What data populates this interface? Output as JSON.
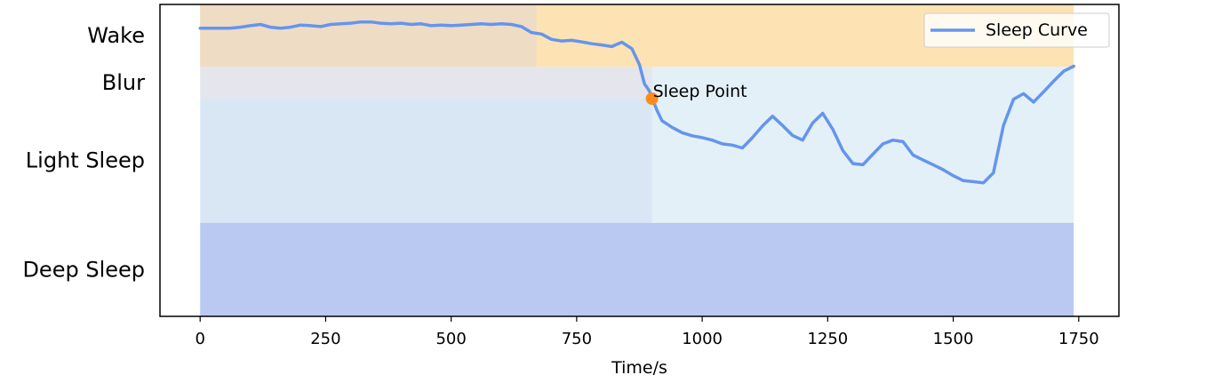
{
  "chart_data": {
    "type": "line",
    "title": "",
    "xlabel": "Time/s",
    "ylabel": "",
    "xlim": [
      -80,
      1830
    ],
    "ylim": [
      0,
      100
    ],
    "x_ticks": [
      0,
      250,
      500,
      750,
      1000,
      1250,
      1500,
      1750
    ],
    "bands": [
      {
        "name": "Wake",
        "from": 80,
        "to": 100,
        "color": "#fde3b4"
      },
      {
        "name": "Blur",
        "from": 70,
        "to": 80,
        "color": "#e5e5ec"
      },
      {
        "name": "Light Sleep",
        "from": 30,
        "to": 70,
        "color": "#d9e7f4"
      },
      {
        "name": "Deep Sleep",
        "from": 0,
        "to": 30,
        "color": "#bac9f2"
      }
    ],
    "band_overlays": [
      {
        "x_from": 0,
        "x_to": 670,
        "y_from": 80,
        "y_to": 100,
        "color": "#efdcc4"
      },
      {
        "x_from": 900,
        "x_to": 1740,
        "y_from": 30,
        "y_to": 80,
        "color": "#e4f0f8"
      }
    ],
    "series": [
      {
        "name": "Sleep Curve",
        "color": "#6495ed",
        "x": [
          0,
          30,
          60,
          80,
          100,
          120,
          140,
          160,
          180,
          200,
          220,
          240,
          260,
          280,
          300,
          320,
          340,
          360,
          380,
          400,
          420,
          440,
          460,
          480,
          500,
          520,
          540,
          560,
          580,
          600,
          620,
          640,
          660,
          680,
          700,
          720,
          740,
          760,
          780,
          800,
          820,
          840,
          860,
          875,
          885,
          895,
          900,
          910,
          920,
          940,
          960,
          980,
          1000,
          1020,
          1040,
          1060,
          1080,
          1100,
          1120,
          1140,
          1160,
          1180,
          1200,
          1220,
          1240,
          1260,
          1280,
          1300,
          1320,
          1340,
          1360,
          1380,
          1400,
          1420,
          1440,
          1460,
          1480,
          1500,
          1520,
          1540,
          1560,
          1580,
          1600,
          1620,
          1640,
          1660,
          1680,
          1700,
          1720,
          1740
        ],
        "y": [
          92.4,
          92.4,
          92.4,
          92.7,
          93.2,
          93.6,
          92.7,
          92.4,
          92.7,
          93.4,
          93.2,
          92.9,
          93.6,
          93.8,
          94.0,
          94.4,
          94.4,
          94.0,
          93.8,
          94.0,
          93.6,
          93.8,
          93.2,
          93.4,
          93.2,
          93.4,
          93.6,
          93.8,
          93.6,
          93.8,
          93.6,
          92.9,
          91.0,
          90.5,
          88.8,
          88.3,
          88.5,
          88.0,
          87.4,
          87.0,
          86.5,
          87.9,
          85.8,
          80.7,
          74.6,
          72.2,
          70.1,
          66.0,
          62.7,
          60.6,
          58.9,
          57.9,
          57.3,
          56.5,
          55.3,
          54.9,
          54.0,
          57.3,
          61.0,
          64.2,
          61.2,
          58.0,
          56.5,
          62.0,
          65.1,
          60.0,
          53.2,
          49.0,
          48.6,
          52.0,
          55.3,
          56.5,
          56.0,
          51.7,
          50.1,
          48.6,
          47.0,
          45.1,
          43.5,
          43.2,
          42.8,
          46.0,
          61.2,
          69.6,
          71.4,
          68.7,
          72.0,
          75.4,
          78.6,
          80.2
        ]
      }
    ],
    "annotations": [
      {
        "text": "Sleep Point",
        "x": 900,
        "y": 69.8,
        "marker_color": "#ff8c1a"
      }
    ],
    "legend": {
      "position": "top-right",
      "entries": [
        "Sleep Curve"
      ]
    },
    "grid": false
  }
}
